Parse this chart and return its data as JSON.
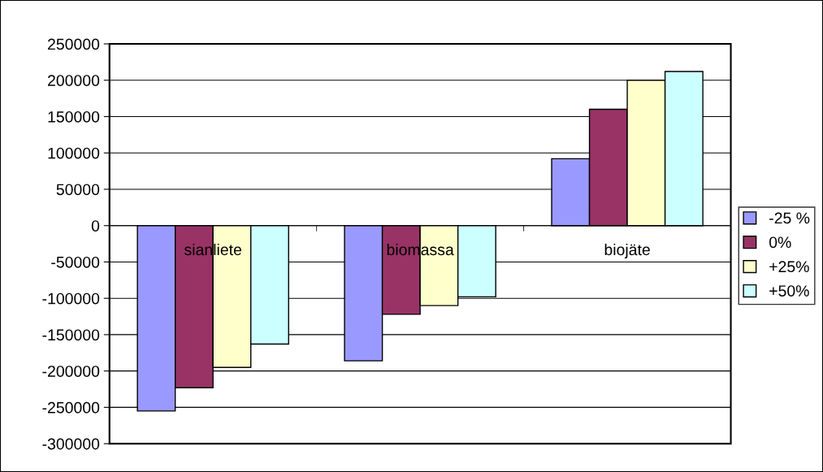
{
  "chart_data": {
    "type": "bar",
    "categories": [
      "sianliete",
      "biomassa",
      "biojäte"
    ],
    "series": [
      {
        "name": "-25 %",
        "color": "#9999ff",
        "values": [
          -255000,
          -186000,
          92000
        ]
      },
      {
        "name": "0%",
        "color": "#993366",
        "values": [
          -223000,
          -122000,
          160000
        ]
      },
      {
        "name": "+25%",
        "color": "#ffffcc",
        "values": [
          -195000,
          -110000,
          200000
        ]
      },
      {
        "name": "+50%",
        "color": "#ccffff",
        "values": [
          -163000,
          -98000,
          212000
        ]
      }
    ],
    "ylim": [
      -300000,
      250000
    ],
    "yticks": [
      -300000,
      -250000,
      -200000,
      -150000,
      -100000,
      -50000,
      0,
      50000,
      100000,
      150000,
      200000,
      250000
    ],
    "grid": "y",
    "legend": "right"
  }
}
